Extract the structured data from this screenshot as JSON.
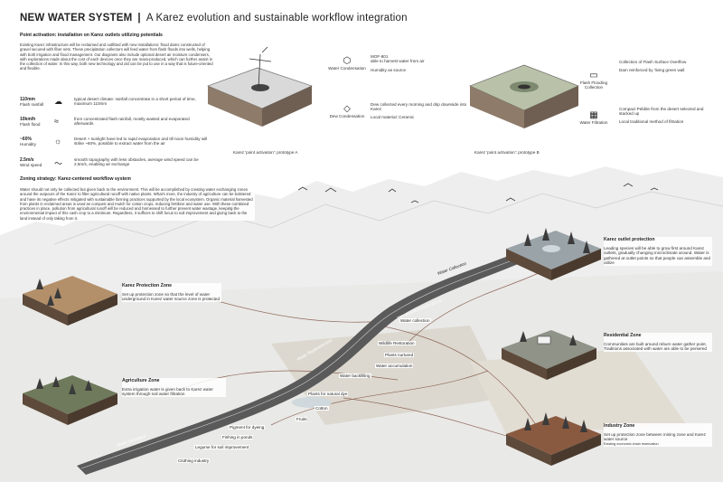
{
  "header": {
    "title_bold": "NEW WATER SYSTEM",
    "separator": "|",
    "title_rest": "A Karez evolution and sustainable workflow integration"
  },
  "point_activation": {
    "heading": "Point activation: installation on Karez outlets utilizing potentials",
    "paragraph": "Existing Karez infrastructure will be reclaimed and outfitted with new installations: flood dams constructed of gravel secured with fiber nets. These precipitation collectors will feed water from flash floods into wells, helping with both irrigation and flood management. Our diagrams also include optional desert air moisture condensers, with explorations made about the cost of each devices once they are mass-produced, which can further assist in the collection of water. In this way, both new technology and old can be put to use in a way that is future-oriented and flexible."
  },
  "stats": [
    {
      "value": "110mm",
      "label": "Flash rainfall",
      "icon": "rain-cloud-icon",
      "description": "typical desert climate: rainfall concentrate in a short period of time, maximum 110mm"
    },
    {
      "value": "10km/h",
      "label": "Flash flood",
      "icon": "flood-wave-icon",
      "description": "from concentrated flash rainfall, mostly wasted and evaporated afterwards"
    },
    {
      "value": "~60%",
      "label": "Humidity",
      "icon": "humidity-icon",
      "description": "Desert + sunlight have led to rapid evaporation and till noon humidity will strike ~60%, possible to extract water from the air"
    },
    {
      "value": "2.5m/s",
      "label": "Wind speed",
      "icon": "wind-icon",
      "description": "smooth topography with less obstacles, average wind speed can be 2.5m/s, enabling air exchange"
    }
  ],
  "prototype_a": {
    "caption": "Karez 'point activation': prototype A",
    "items": [
      {
        "name": "Water Condensation",
        "icon": "condensation-icon",
        "lines": [
          "MOF-801",
          "able to harvest water from air",
          "Humidity as source"
        ]
      },
      {
        "name": "Dew Condensation",
        "icon": "dew-icon",
        "lines": [
          "Dew collected every morning and drip downside into Karez",
          "Local material: Ceramic"
        ]
      }
    ]
  },
  "prototype_b": {
    "caption": "Karez 'point activation': prototype B",
    "items": [
      {
        "name": "Flash Flooding Collection",
        "icon": "flash-flood-icon",
        "lines": [
          "Collection of Flash Surface Overflow",
          "Dam reinforced by 'living green wall"
        ]
      },
      {
        "name": "Water Filtration",
        "icon": "filtration-icon",
        "lines": [
          "Compact Pebble from the desert selected and stacked up",
          "Local traditional method of filtration"
        ]
      }
    ]
  },
  "zoning": {
    "heading": "Zoning strategy: Karez-centered workflow system",
    "paragraph": "Water should not only be collected but given back to the environment. This will be accomplished by creating water exchanging zones around the outpours of the Karez to filter agricultural runoff with native plants. What's more, the industry of agriculture can be bolstered and have its negative effects mitigated with sustainable farming practices supported by the local ecosystem. Organic material harvested from plants in reclaimed areas is used as compost and mulch for cotton crops, reducing fertilizer and water use. With these combined practices in place, pollution from agricultural runoff will be reduced and harnessed to further prevent water wastage, keeping the environmental impact of this cash crop to a minimum. Regardless, it suffices to shift focus to soil improvement and giving back to the land instead of only taking from it."
  },
  "zones": [
    {
      "title": "Karez Protection Zone",
      "text": "Set up protection zone so that the level of water underground in Karez water source zone is protected"
    },
    {
      "title": "Agriculture Zone",
      "text": "Extra irrigation water is given back to Karez water system through soil water filtration"
    },
    {
      "title": "Karez outlet protection",
      "text": "Leading species will be able to grow first around Karez outlets, gradually changing microclimate around. Water is gathered at outlet points so that people can assemble and utilize"
    },
    {
      "title": "Residential Zone",
      "text": "Communities are built around reburn water gather point. Traditions associated with water are able to be persered"
    },
    {
      "title": "Industry Zone",
      "text": "Set up protection zone between mining zone and Karez water source",
      "extra": "Existing economic chain reservation"
    }
  ],
  "channel_labels": {
    "collection": "Water Collection",
    "replenishment": "Water Replenishment",
    "utilization": "Water Utilization",
    "top": "TOP UNDERGROUND NEXUS"
  },
  "flow_labels": [
    "Water collection",
    "Wildlife Restoration",
    "Plants nurtured",
    "Water accumulation",
    "Water backfilling",
    "Plants for natural dye",
    "Cotton",
    "Fruits",
    "Pigment for dyeing",
    "Fishing in ponds",
    "Legume for soil improvement",
    "Clothing industry"
  ],
  "colors": {
    "accent": "#222222",
    "channel": "#555555",
    "ground": "#e6e6e6",
    "soil": "#8a6a4a",
    "tree": "#3b3b3b",
    "sky": "#f4f4f4"
  }
}
